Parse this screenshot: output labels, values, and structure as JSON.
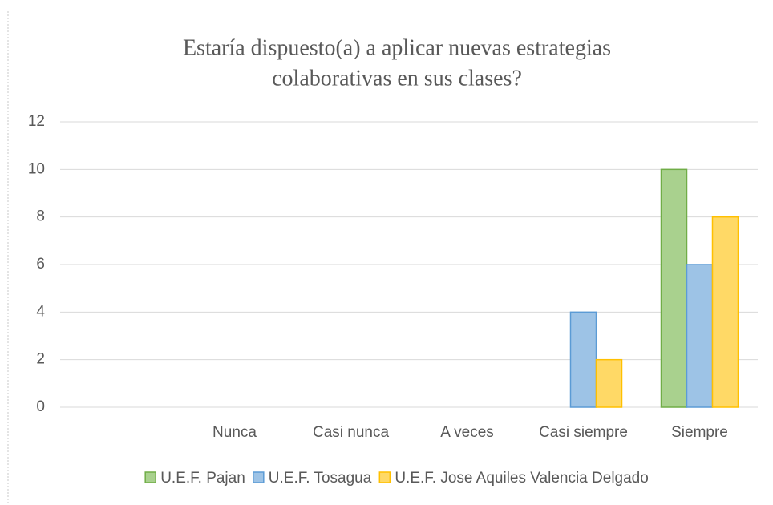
{
  "chart_data": {
    "type": "bar",
    "title": [
      "Estaría dispuesto(a) a aplicar nuevas estrategias",
      "colaborativas en sus clases?"
    ],
    "categories": [
      null,
      "Nunca",
      "Casi nunca",
      "A veces",
      "Casi siempre",
      "Siempre"
    ],
    "series": [
      {
        "name": "U.E.F. Pajan",
        "color": "#a9d18e",
        "edgecolor": "#70ad47",
        "values": [
          0,
          0,
          0,
          0,
          0,
          10
        ]
      },
      {
        "name": "U.E.F. Tosagua",
        "color": "#9dc3e6",
        "edgecolor": "#5b9bd5",
        "values": [
          0,
          0,
          0,
          0,
          4,
          6
        ]
      },
      {
        "name": "U.E.F. Jose Aquiles Valencia Delgado",
        "color": "#ffd966",
        "edgecolor": "#ffc000",
        "values": [
          0,
          0,
          0,
          0,
          2,
          8
        ]
      }
    ],
    "ylim": [
      0,
      12
    ],
    "yticks": [
      0,
      2,
      4,
      6,
      8,
      10,
      12
    ],
    "grid": true,
    "legend": "bottom"
  }
}
